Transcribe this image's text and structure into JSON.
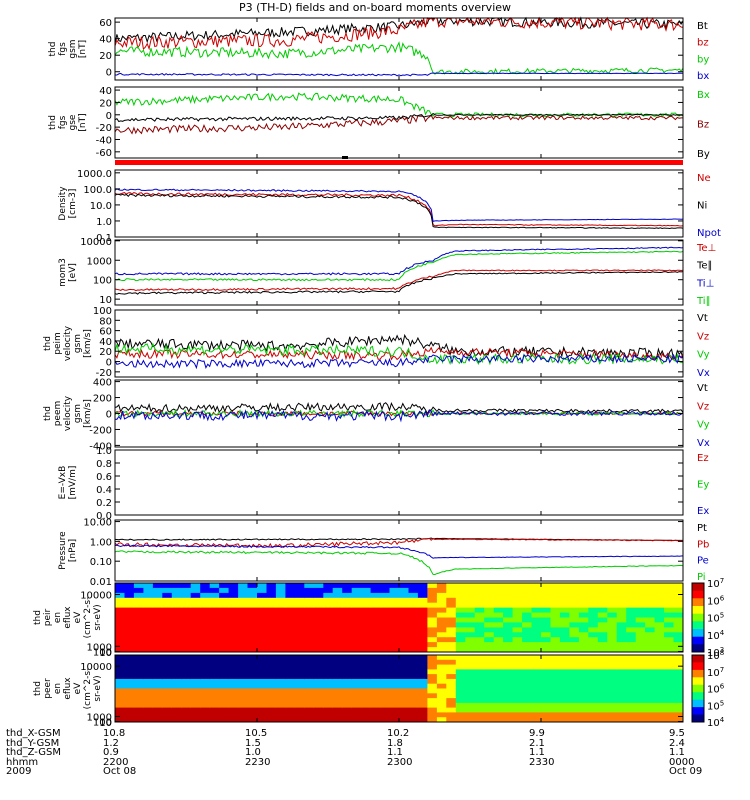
{
  "title": "P3 (TH-D) fields and on-board moments overview",
  "time_axis": {
    "ticks": [
      "2200",
      "2230",
      "2300",
      "2330",
      "0000"
    ],
    "dates": [
      "Oct 08",
      "Oct 09"
    ],
    "rows": [
      {
        "label": "thd_X-GSM",
        "values": [
          "10.8",
          "10.5",
          "10.2",
          "9.9",
          "9.5"
        ]
      },
      {
        "label": "thd_Y-GSM",
        "values": [
          "1.2",
          "1.5",
          "1.8",
          "2.1",
          "2.4"
        ]
      },
      {
        "label": "thd_Z-GSM",
        "values": [
          "0.9",
          "1.0",
          "1.1",
          "1.1",
          "1.1"
        ]
      },
      {
        "label": "hhmm",
        "values": [
          "2200",
          "2230",
          "2300",
          "2330",
          "0000"
        ]
      },
      {
        "label": "2009",
        "values": [
          "Oct 08",
          "",
          "",
          "",
          "Oct 09"
        ]
      }
    ]
  },
  "chart_data": [
    {
      "type": "line",
      "name": "fgs_gsm",
      "ylabel": [
        "thd",
        "fgs",
        "gsm",
        "[nT]"
      ],
      "ylim": [
        -10,
        65
      ],
      "yticks": [
        0,
        20,
        40,
        60
      ],
      "series": [
        {
          "name": "Bt",
          "color": "#000000",
          "points": [
            [
              0,
              40
            ],
            [
              0.3,
              48
            ],
            [
              0.5,
              55
            ],
            [
              0.56,
              62
            ],
            [
              1,
              57
            ]
          ],
          "noise": 6,
          "quiet": 1
        },
        {
          "name": "bz",
          "color": "#cc0000",
          "points": [
            [
              0,
              35
            ],
            [
              0.3,
              38
            ],
            [
              0.5,
              50
            ],
            [
              0.56,
              62
            ],
            [
              1,
              57
            ]
          ],
          "noise": 8,
          "quiet": 1
        },
        {
          "name": "by",
          "color": "#00cc00",
          "points": [
            [
              0,
              25
            ],
            [
              0.3,
              22
            ],
            [
              0.5,
              30
            ],
            [
              0.55,
              20
            ],
            [
              0.56,
              0
            ],
            [
              1,
              2
            ]
          ],
          "noise": 6,
          "quiet": 0.5
        },
        {
          "name": "bx",
          "color": "#0000cc",
          "points": [
            [
              0,
              -3
            ],
            [
              0.55,
              -4
            ],
            [
              0.56,
              -2
            ],
            [
              1,
              -2
            ]
          ],
          "noise": 1,
          "quiet": 0.3
        }
      ]
    },
    {
      "type": "line",
      "name": "fgs_gse",
      "ylabel": [
        "thd",
        "fgs",
        "gse",
        "[nT]"
      ],
      "ylim": [
        -70,
        45
      ],
      "yticks": [
        -60,
        -40,
        -20,
        0,
        20,
        40
      ],
      "series": [
        {
          "name": "Bx",
          "color": "#00cc00",
          "points": [
            [
              0,
              20
            ],
            [
              0.3,
              30
            ],
            [
              0.5,
              25
            ],
            [
              0.56,
              0
            ],
            [
              1,
              0
            ]
          ],
          "noise": 6,
          "quiet": 0.5
        },
        {
          "name": "Bz",
          "color": "#8b0000",
          "points": [
            [
              0,
              -25
            ],
            [
              0.3,
              -20
            ],
            [
              0.5,
              -10
            ],
            [
              0.56,
              -5
            ],
            [
              1,
              -5
            ]
          ],
          "noise": 6,
          "quiet": 0.5
        },
        {
          "name": "By",
          "color": "#000000",
          "points": [
            [
              0,
              -8
            ],
            [
              0.5,
              -5
            ],
            [
              0.56,
              0
            ],
            [
              1,
              0
            ]
          ],
          "noise": 3,
          "quiet": 0.3
        }
      ]
    },
    {
      "type": "line",
      "name": "density",
      "log": true,
      "ylabel": [
        "Density",
        "[cm-3]"
      ],
      "ylim": [
        0.1,
        1500
      ],
      "yticks": [
        0.1,
        1.0,
        10.0,
        100.0,
        1000.0
      ],
      "ytick_labels": [
        "0.1",
        "1.0",
        "10.0",
        "100.0",
        "1000.0"
      ],
      "series": [
        {
          "name": "Ne",
          "color": "#cc0000",
          "points": [
            [
              0,
              50
            ],
            [
              0.5,
              40
            ],
            [
              0.56,
              0.5
            ],
            [
              0.6,
              0.6
            ],
            [
              1,
              0.5
            ]
          ],
          "noise": 0.15,
          "quiet": 0.3
        },
        {
          "name": "Ni",
          "color": "#000000",
          "points": [
            [
              0,
              40
            ],
            [
              0.5,
              30
            ],
            [
              0.56,
              0.4
            ],
            [
              0.6,
              0.4
            ],
            [
              1,
              0.35
            ]
          ],
          "noise": 0.15,
          "quiet": 0.3
        },
        {
          "name": "Npot",
          "color": "#0000cc",
          "points": [
            [
              0,
              90
            ],
            [
              0.5,
              70
            ],
            [
              0.56,
              1.0
            ],
            [
              0.6,
              1.1
            ],
            [
              1,
              1.3
            ]
          ],
          "noise": 0.1,
          "quiet": 0.3
        }
      ]
    },
    {
      "type": "line",
      "name": "temperature",
      "log": true,
      "ylabel": [
        "mom3",
        "[eV]"
      ],
      "ylim": [
        5,
        11000
      ],
      "yticks": [
        10,
        100,
        1000,
        10000
      ],
      "ytick_labels": [
        "10",
        "100",
        "1000",
        "10000"
      ],
      "series": [
        {
          "name": "Te⊥",
          "color": "#cc0000",
          "points": [
            [
              0,
              30
            ],
            [
              0.5,
              35
            ],
            [
              0.56,
              150
            ],
            [
              0.6,
              300
            ],
            [
              1,
              300
            ]
          ],
          "noise": 0.1,
          "quiet": 0.5
        },
        {
          "name": "Te∥",
          "color": "#000000",
          "points": [
            [
              0,
              20
            ],
            [
              0.5,
              25
            ],
            [
              0.56,
              120
            ],
            [
              0.6,
              200
            ],
            [
              1,
              250
            ]
          ],
          "noise": 0.1,
          "quiet": 0.5
        },
        {
          "name": "Ti⊥",
          "color": "#0000cc",
          "points": [
            [
              0,
              200
            ],
            [
              0.5,
              200
            ],
            [
              0.56,
              1000
            ],
            [
              0.6,
              3000
            ],
            [
              1,
              4500
            ]
          ],
          "noise": 0.1,
          "quiet": 0.5
        },
        {
          "name": "Ti∥",
          "color": "#00cc00",
          "points": [
            [
              0,
              100
            ],
            [
              0.5,
              100
            ],
            [
              0.56,
              800
            ],
            [
              0.6,
              2000
            ],
            [
              1,
              2800
            ]
          ],
          "noise": 0.1,
          "quiet": 0.5
        }
      ]
    },
    {
      "type": "line",
      "name": "velocity_gsm",
      "ylabel": [
        "thd",
        "peim",
        "velocity",
        "gsm",
        "[km/s]"
      ],
      "ylim": [
        -30,
        100
      ],
      "yticks": [
        -20,
        0,
        20,
        40,
        60,
        80,
        100
      ],
      "series": [
        {
          "name": "Vt",
          "color": "#000000",
          "points": [
            [
              0,
              35
            ],
            [
              0.3,
              30
            ],
            [
              0.5,
              45
            ],
            [
              0.56,
              30
            ],
            [
              0.6,
              20
            ],
            [
              1,
              15
            ]
          ],
          "noise": 10,
          "quiet": 1
        },
        {
          "name": "Vz",
          "color": "#cc0000",
          "points": [
            [
              0,
              15
            ],
            [
              0.5,
              12
            ],
            [
              0.56,
              20
            ],
            [
              1,
              10
            ]
          ],
          "noise": 8,
          "quiet": 1
        },
        {
          "name": "Vy",
          "color": "#00cc00",
          "points": [
            [
              0,
              25
            ],
            [
              0.5,
              20
            ],
            [
              0.56,
              5
            ],
            [
              1,
              5
            ]
          ],
          "noise": 10,
          "quiet": 1
        },
        {
          "name": "Vx",
          "color": "#0000cc",
          "points": [
            [
              0,
              -5
            ],
            [
              0.5,
              -3
            ],
            [
              0.56,
              5
            ],
            [
              1,
              5
            ]
          ],
          "noise": 8,
          "quiet": 1
        }
      ]
    },
    {
      "type": "line",
      "name": "velocity_peem",
      "ylabel": [
        "thd",
        "peem",
        "velocity",
        "gsm",
        "[km/s]"
      ],
      "ylim": [
        -420,
        420
      ],
      "yticks": [
        -400,
        -200,
        0,
        200,
        400
      ],
      "series": [
        {
          "name": "Vt",
          "color": "#000000",
          "points": [
            [
              0,
              60
            ],
            [
              0.5,
              90
            ],
            [
              0.56,
              40
            ],
            [
              1,
              30
            ]
          ],
          "noise": 50,
          "quiet": 0.4
        },
        {
          "name": "Vz",
          "color": "#cc0000",
          "points": [
            [
              0,
              0
            ],
            [
              0.5,
              0
            ],
            [
              1,
              0
            ]
          ],
          "noise": 30,
          "quiet": 0.4
        },
        {
          "name": "Vy",
          "color": "#00cc00",
          "points": [
            [
              0,
              0
            ],
            [
              1,
              0
            ]
          ],
          "noise": 40,
          "quiet": 0.4
        },
        {
          "name": "Vx",
          "color": "#0000cc",
          "points": [
            [
              0,
              -20
            ],
            [
              0.5,
              -30
            ],
            [
              0.56,
              0
            ],
            [
              1,
              0
            ]
          ],
          "noise": 60,
          "quiet": 0.4
        }
      ]
    },
    {
      "type": "line",
      "name": "efield",
      "empty": true,
      "ylabel": [
        "E=-VxB",
        "[mV/m]"
      ],
      "ylim": [
        0,
        1
      ],
      "yticks": [
        0,
        0.2,
        0.4,
        0.6,
        0.8,
        1.0
      ],
      "ytick_labels": [
        "0.0",
        "0.2",
        "0.4",
        "0.6",
        "0.8",
        "1.0"
      ],
      "series": [
        {
          "name": "Ez",
          "color": "#cc0000",
          "points": []
        },
        {
          "name": "Ey",
          "color": "#00cc00",
          "points": []
        },
        {
          "name": "Ex",
          "color": "#0000cc",
          "points": []
        }
      ]
    },
    {
      "type": "line",
      "name": "pressure",
      "log": true,
      "ylabel": [
        "Pressure",
        "[nPa]"
      ],
      "ylim": [
        0.01,
        12
      ],
      "yticks": [
        0.01,
        0.1,
        1,
        10
      ],
      "ytick_labels": [
        "0.01",
        "0.10",
        "1.00",
        "10.00"
      ],
      "series": [
        {
          "name": "Pt",
          "color": "#000000",
          "points": [
            [
              0,
              1.2
            ],
            [
              0.5,
              1.3
            ],
            [
              0.56,
              1.4
            ],
            [
              1,
              1.1
            ]
          ],
          "noise": 0.06,
          "quiet": 0.3
        },
        {
          "name": "Pb",
          "color": "#cc0000",
          "points": [
            [
              0,
              0.7
            ],
            [
              0.3,
              0.6
            ],
            [
              0.5,
              0.9
            ],
            [
              0.56,
              1.3
            ],
            [
              1,
              1.1
            ]
          ],
          "noise": 0.2,
          "quiet": 0.2
        },
        {
          "name": "Pe",
          "color": "#0000cc",
          "points": [
            [
              0,
              0.6
            ],
            [
              0.5,
              0.5
            ],
            [
              0.56,
              0.15
            ],
            [
              1,
              0.18
            ]
          ],
          "noise": 0.08,
          "quiet": 0.3
        },
        {
          "name": "Pi",
          "color": "#00cc00",
          "points": [
            [
              0,
              0.3
            ],
            [
              0.5,
              0.25
            ],
            [
              0.56,
              0.02
            ],
            [
              0.6,
              0.04
            ],
            [
              1,
              0.06
            ]
          ],
          "noise": 0.1,
          "quiet": 0.3
        }
      ]
    },
    {
      "type": "heatmap",
      "name": "peir_spectrogram",
      "ylabel": [
        "thd",
        "peir",
        "en",
        "eflux",
        "eV",
        "(cm^2-s-",
        "sr-eV)"
      ],
      "ylim": [
        10,
        12000
      ],
      "yticks": [
        10,
        100,
        1000,
        10000
      ],
      "ytick_labels": [
        "10",
        "100",
        "1000",
        "10000"
      ],
      "colorbar": {
        "min_exp": 3,
        "max_exp": 7,
        "labels": [
          "10^3",
          "10^4",
          "10^5",
          "10^6",
          "10^7"
        ]
      }
    },
    {
      "type": "heatmap",
      "name": "peer_spectrogram",
      "ylabel": [
        "thd",
        "peer",
        "en",
        "eflux",
        "eV",
        "(cm^2-s-",
        "sr-eV)"
      ],
      "ylim": [
        8,
        12000
      ],
      "yticks": [
        10,
        100,
        1000,
        10000
      ],
      "ytick_labels": [
        "10",
        "100",
        "1000",
        "10000"
      ],
      "colorbar": {
        "min_exp": 4,
        "max_exp": 8,
        "labels": [
          "10^4",
          "10^5",
          "10^6",
          "10^7",
          "10^8"
        ]
      }
    }
  ]
}
